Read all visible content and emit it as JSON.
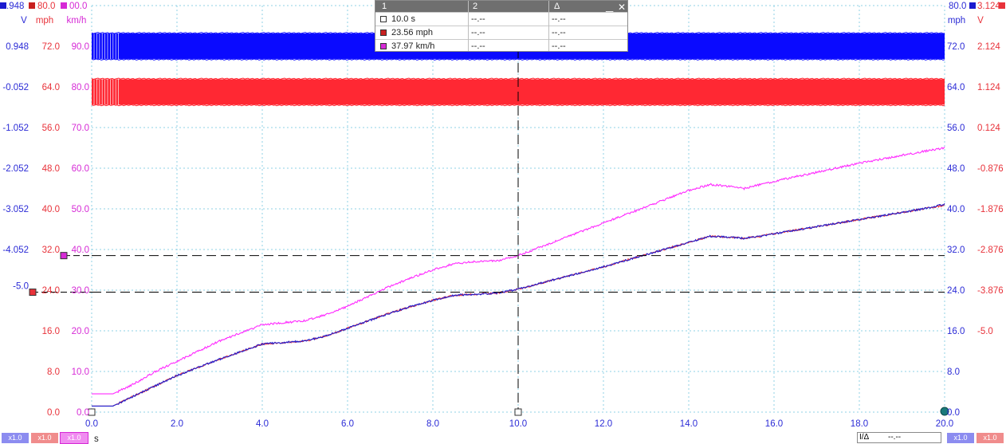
{
  "chart_data": {
    "type": "line",
    "x": {
      "label": "s",
      "ticks": [
        "0.0",
        "2.0",
        "4.0",
        "6.0",
        "8.0",
        "10.0",
        "12.0",
        "14.0",
        "16.0",
        "18.0",
        "20.0"
      ],
      "range": [
        0,
        20
      ]
    },
    "axes": {
      "left_v": {
        "unit": "V",
        "color": "#2b2bd6",
        "top_label": ".948",
        "ticks": [
          "0.948",
          "-0.052",
          "-1.052",
          "-2.052",
          "-3.052",
          "-4.052",
          "-5.0"
        ]
      },
      "left_mph": {
        "unit": "mph",
        "color": "#e8323a",
        "top_label": "80.0",
        "ticks": [
          "72.0",
          "64.0",
          "56.0",
          "48.0",
          "40.0",
          "32.0",
          "24.0",
          "16.0",
          "8.0",
          "0.0"
        ]
      },
      "left_kmh": {
        "unit": "km/h",
        "color": "#d62ad6",
        "top_label": "00.0",
        "ticks": [
          "90.0",
          "80.0",
          "70.0",
          "60.0",
          "50.0",
          "40.0",
          "30.0",
          "20.0",
          "10.0",
          "0.0"
        ]
      },
      "right_mph": {
        "unit": "mph",
        "color": "#2b2bd6",
        "top_label": "80.0",
        "ticks": [
          "72.0",
          "64.0",
          "56.0",
          "48.0",
          "40.0",
          "32.0",
          "24.0",
          "16.0",
          "8.0",
          "0.0"
        ]
      },
      "right_v": {
        "unit": "V",
        "color": "#e8323a",
        "top_label": "3.124",
        "ticks": [
          "2.124",
          "1.124",
          "0.124",
          "-0.876",
          "-1.876",
          "-2.876",
          "-3.876",
          "-5.0"
        ]
      }
    },
    "series": [
      {
        "name": "km/h",
        "color": "#ff2bff",
        "scale_max": 100,
        "points": [
          [
            0,
            4.5
          ],
          [
            0.5,
            4.5
          ],
          [
            1,
            7
          ],
          [
            1.5,
            10
          ],
          [
            2,
            12.5
          ],
          [
            2.5,
            15
          ],
          [
            3,
            17.5
          ],
          [
            3.5,
            19.5
          ],
          [
            4,
            21.5
          ],
          [
            4.5,
            22
          ],
          [
            5,
            22.5
          ],
          [
            5.5,
            24
          ],
          [
            6,
            26
          ],
          [
            6.5,
            28.5
          ],
          [
            7,
            31
          ],
          [
            7.5,
            33
          ],
          [
            8,
            35
          ],
          [
            8.5,
            36.5
          ],
          [
            9,
            37
          ],
          [
            9.5,
            37.2
          ],
          [
            10,
            38.5
          ],
          [
            10.5,
            40.5
          ],
          [
            11,
            42.5
          ],
          [
            11.5,
            44.5
          ],
          [
            12,
            46.5
          ],
          [
            12.5,
            48.5
          ],
          [
            13,
            50.5
          ],
          [
            13.5,
            52.5
          ],
          [
            14,
            54.5
          ],
          [
            14.5,
            56
          ],
          [
            15,
            55.5
          ],
          [
            15.3,
            55
          ],
          [
            15.6,
            55.8
          ],
          [
            16,
            56.7
          ],
          [
            16.5,
            57.9
          ],
          [
            17,
            59
          ],
          [
            17.5,
            60.1
          ],
          [
            18,
            61.2
          ],
          [
            18.5,
            62.2
          ],
          [
            19,
            63.2
          ],
          [
            19.5,
            64.1
          ],
          [
            20,
            65
          ]
        ]
      },
      {
        "name": "mph (red)",
        "color": "#e8323a",
        "scale_max": 80,
        "points": [
          [
            0,
            1.2
          ],
          [
            0.5,
            1.2
          ],
          [
            1,
            3.2
          ],
          [
            1.5,
            5.2
          ],
          [
            2,
            7.2
          ],
          [
            2.5,
            8.8
          ],
          [
            3,
            10.4
          ],
          [
            3.5,
            11.9
          ],
          [
            4,
            13.4
          ],
          [
            4.5,
            13.7
          ],
          [
            5,
            14
          ],
          [
            5.5,
            15
          ],
          [
            6,
            16.5
          ],
          [
            6.5,
            18
          ],
          [
            7,
            19.5
          ],
          [
            7.5,
            20.8
          ],
          [
            8,
            22
          ],
          [
            8.5,
            23
          ],
          [
            9,
            23.2
          ],
          [
            9.5,
            23.4
          ],
          [
            10,
            24.2
          ],
          [
            10.5,
            25.3
          ],
          [
            11,
            26.4
          ],
          [
            11.5,
            27.5
          ],
          [
            12,
            28.6
          ],
          [
            12.5,
            29.8
          ],
          [
            13,
            31
          ],
          [
            13.5,
            32.2
          ],
          [
            14,
            33.4
          ],
          [
            14.5,
            34.6
          ],
          [
            15,
            34.4
          ],
          [
            15.3,
            34.2
          ],
          [
            15.6,
            34.5
          ],
          [
            16,
            35.1
          ],
          [
            16.5,
            35.8
          ],
          [
            17,
            36.5
          ],
          [
            17.5,
            37.2
          ],
          [
            18,
            37.9
          ],
          [
            18.5,
            38.6
          ],
          [
            19,
            39.3
          ],
          [
            19.5,
            40
          ],
          [
            20,
            40.7
          ]
        ]
      },
      {
        "name": "V (blue)",
        "color": "#1d1dcf",
        "scale_max": 80,
        "points": [
          [
            0,
            1.2
          ],
          [
            0.5,
            1.2
          ],
          [
            1,
            3.2
          ],
          [
            1.5,
            5.2
          ],
          [
            2,
            7.2
          ],
          [
            2.5,
            8.8
          ],
          [
            3,
            10.4
          ],
          [
            3.5,
            11.9
          ],
          [
            4,
            13.4
          ],
          [
            4.5,
            13.7
          ],
          [
            5,
            14
          ],
          [
            5.5,
            15
          ],
          [
            6,
            16.5
          ],
          [
            6.5,
            18
          ],
          [
            7,
            19.5
          ],
          [
            7.5,
            20.8
          ],
          [
            8,
            22
          ],
          [
            8.5,
            23
          ],
          [
            9,
            23.2
          ],
          [
            9.5,
            23.4
          ],
          [
            10,
            24.2
          ],
          [
            10.5,
            25.3
          ],
          [
            11,
            26.4
          ],
          [
            11.5,
            27.5
          ],
          [
            12,
            28.6
          ],
          [
            12.5,
            29.8
          ],
          [
            13,
            31
          ],
          [
            13.5,
            32.2
          ],
          [
            14,
            33.4
          ],
          [
            14.5,
            34.6
          ],
          [
            15,
            34.4
          ],
          [
            15.3,
            34.2
          ],
          [
            15.6,
            34.5
          ],
          [
            16,
            35.1
          ],
          [
            16.5,
            35.8
          ],
          [
            17,
            36.5
          ],
          [
            17.5,
            37.2
          ],
          [
            18,
            37.9
          ],
          [
            18.5,
            38.6
          ],
          [
            19,
            39.3
          ],
          [
            19.5,
            40
          ],
          [
            20,
            40.9
          ]
        ]
      }
    ],
    "digital_bands": [
      {
        "name": "blue digital",
        "color": "#0a0aff",
        "level_high_mph": 74.5,
        "level_low_mph": 69.5
      },
      {
        "name": "red digital",
        "color": "#ff2833",
        "level_high_mph": 65.5,
        "level_low_mph": 60.5
      }
    ],
    "cursor_x": 10,
    "horizontal_markers": [
      {
        "color": "#d62ad6",
        "value_kmh": 38.5
      },
      {
        "color": "#e8323a",
        "value_mph": 23.6
      }
    ],
    "grid": true
  },
  "cursor_panel": {
    "headers": [
      "1",
      "2",
      "Δ"
    ],
    "rows": [
      {
        "swatch": "#ffffff",
        "c1": "10.0 s",
        "c2": "--.--",
        "c3": "--.--"
      },
      {
        "swatch": "#c82020",
        "c1": "23.56 mph",
        "c2": "--.--",
        "c3": "--.--"
      },
      {
        "swatch": "#d62ad6",
        "c1": "37.97 km/h",
        "c2": "--.--",
        "c3": "--.--"
      }
    ],
    "minimize": "▁",
    "close": "✕"
  },
  "badges": {
    "b1": "x1.0",
    "b2": "x1.0",
    "b3": "x1.0",
    "b4": "x1.0",
    "b5": "x1.0"
  },
  "delta_box": {
    "label": "I/Δ",
    "value": "--.--"
  }
}
